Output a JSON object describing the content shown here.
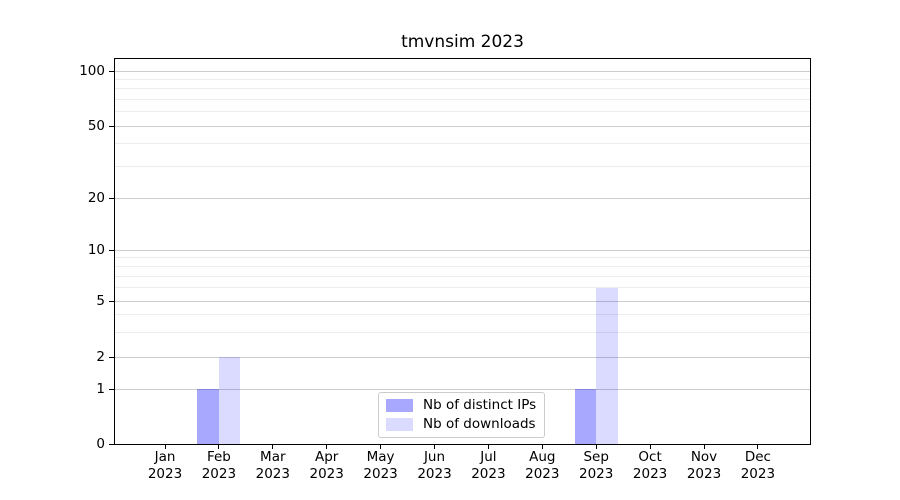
{
  "title": "tmvnsim 2023",
  "chart_data": {
    "type": "bar",
    "title": "tmvnsim 2023",
    "categories": [
      "Jan",
      "Feb",
      "Mar",
      "Apr",
      "May",
      "Jun",
      "Jul",
      "Aug",
      "Sep",
      "Oct",
      "Nov",
      "Dec"
    ],
    "category_year": "2023",
    "series": [
      {
        "name": "Nb of distinct IPs",
        "color": "rgba(0,0,255,0.34)",
        "values": [
          0,
          1,
          0,
          0,
          0,
          0,
          0,
          0,
          1,
          0,
          0,
          0
        ]
      },
      {
        "name": "Nb of downloads",
        "color": "rgba(0,0,255,0.14)",
        "values": [
          0,
          2,
          0,
          0,
          0,
          0,
          0,
          0,
          6,
          0,
          0,
          0
        ]
      }
    ],
    "y_ticks": [
      0,
      1,
      2,
      5,
      10,
      20,
      50,
      100
    ],
    "y_minor_ticks": [
      3,
      4,
      6,
      7,
      8,
      9,
      30,
      40,
      60,
      70,
      80,
      90
    ],
    "y_scale": "symlog",
    "ylim": [
      0,
      116
    ],
    "grid": true,
    "legend_position": "lower-center-inside"
  }
}
